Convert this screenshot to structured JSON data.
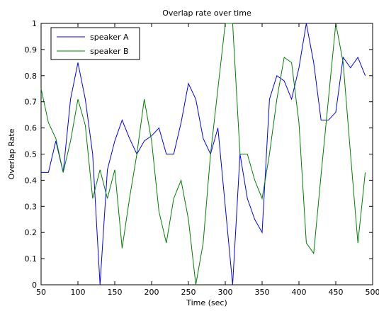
{
  "chart_data": {
    "type": "line",
    "title": "Overlap rate over time",
    "xlabel": "Time (sec)",
    "ylabel": "Overlap Rate",
    "xlim": [
      50,
      500
    ],
    "ylim": [
      0,
      1
    ],
    "xticks": [
      50,
      100,
      150,
      200,
      250,
      300,
      350,
      400,
      450,
      500
    ],
    "yticks": [
      0,
      0.1,
      0.2,
      0.3,
      0.4,
      0.5,
      0.6,
      0.7,
      0.8,
      0.9,
      1
    ],
    "grid": false,
    "legend_position": "top-left",
    "x": [
      50,
      60,
      70,
      80,
      90,
      100,
      110,
      120,
      130,
      140,
      150,
      160,
      170,
      180,
      190,
      200,
      210,
      220,
      230,
      240,
      250,
      260,
      270,
      280,
      290,
      300,
      310,
      320,
      330,
      340,
      350,
      360,
      370,
      380,
      390,
      400,
      410,
      420,
      430,
      440,
      450,
      460,
      470,
      480,
      490
    ],
    "series": [
      {
        "name": "speaker A",
        "color": "#0000ff",
        "values": [
          0.43,
          0.43,
          0.55,
          0.43,
          0.71,
          0.85,
          0.71,
          0.5,
          0.0,
          0.44,
          0.55,
          0.63,
          0.56,
          0.5,
          0.55,
          0.57,
          0.6,
          0.5,
          0.5,
          0.62,
          0.77,
          0.71,
          0.56,
          0.5,
          0.6,
          0.3,
          0.0,
          0.5,
          0.33,
          0.25,
          0.2,
          0.71,
          0.8,
          0.78,
          0.71,
          0.83,
          1.0,
          0.85,
          0.63,
          0.63,
          0.66,
          0.87,
          0.83,
          0.87,
          0.8
        ]
      },
      {
        "name": "speaker B",
        "color": "#008000",
        "values": [
          0.75,
          0.62,
          0.56,
          0.43,
          0.55,
          0.71,
          0.61,
          0.33,
          0.44,
          0.33,
          0.44,
          0.14,
          0.33,
          0.5,
          0.71,
          0.55,
          0.28,
          0.16,
          0.33,
          0.4,
          0.25,
          0.0,
          0.16,
          0.5,
          0.75,
          1.0,
          1.0,
          0.5,
          0.5,
          0.4,
          0.33,
          0.5,
          0.71,
          0.87,
          0.85,
          0.62,
          0.16,
          0.12,
          0.42,
          0.71,
          1.0,
          0.85,
          0.5,
          0.16,
          0.43
        ]
      }
    ]
  }
}
